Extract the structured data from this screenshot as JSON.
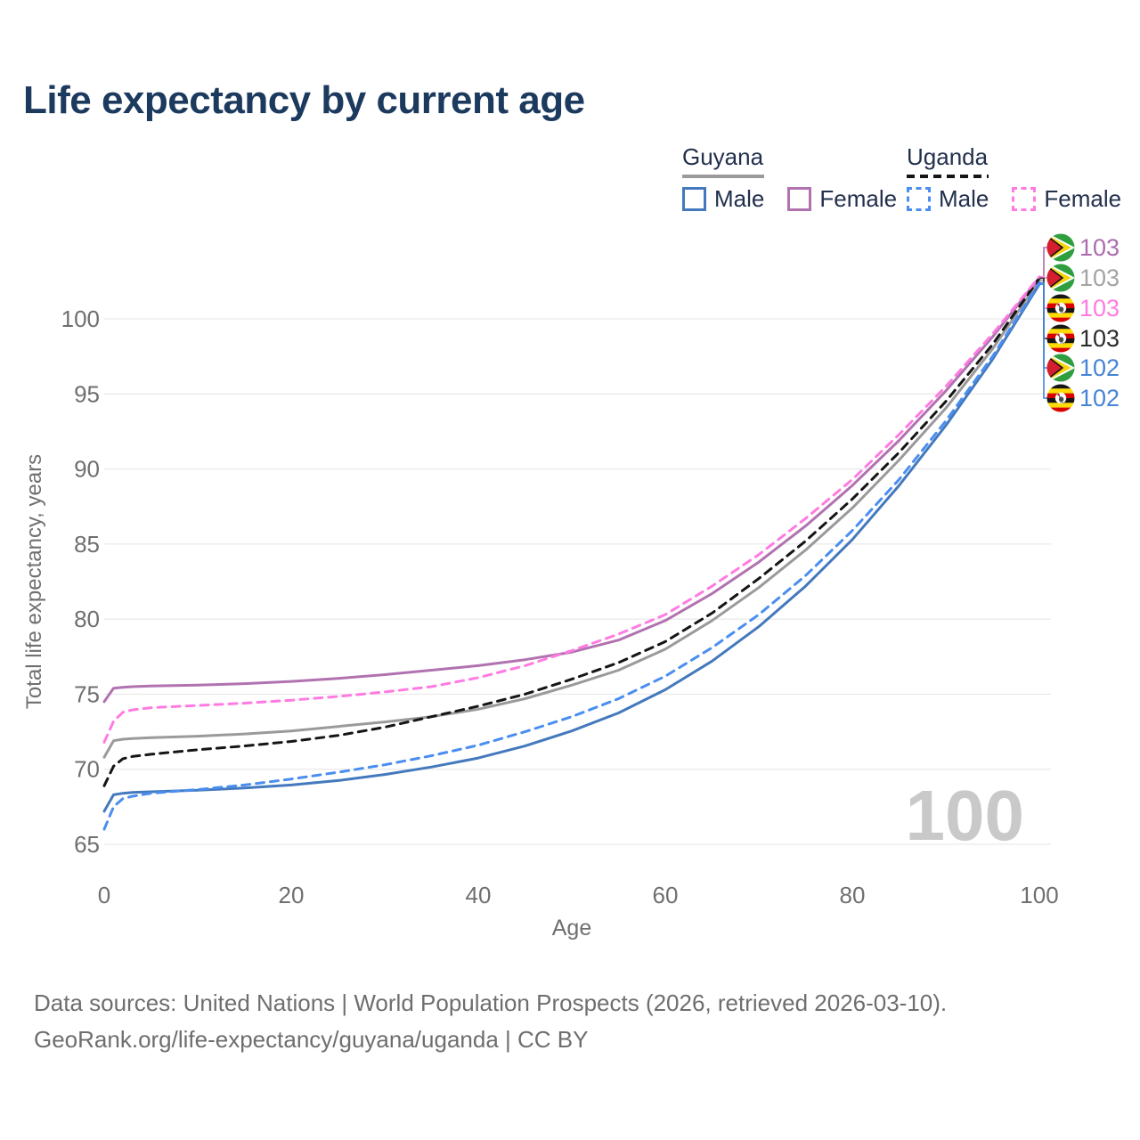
{
  "title": "Life expectancy by current age",
  "legend": {
    "groups": [
      {
        "country": "Guyana",
        "line_style": "solid",
        "underline_color": "#9a9a9a",
        "items": [
          {
            "label": "Male",
            "color": "#4479bd",
            "dashed": false
          },
          {
            "label": "Female",
            "color": "#b172b0",
            "dashed": false
          }
        ]
      },
      {
        "country": "Uganda",
        "line_style": "dashed",
        "underline_color": "#151515",
        "items": [
          {
            "label": "Male",
            "color": "#4a8ef0",
            "dashed": true
          },
          {
            "label": "Female",
            "color": "#ff7be1",
            "dashed": true
          }
        ]
      }
    ]
  },
  "chart_data": {
    "type": "line",
    "title": "Life expectancy by current age",
    "xlabel": "Age",
    "ylabel": "Total life expectancy, years",
    "xlim": [
      0,
      100
    ],
    "ylim": [
      65,
      100
    ],
    "x_ticks": [
      0,
      20,
      40,
      60,
      80,
      100
    ],
    "y_ticks": [
      65,
      70,
      75,
      80,
      85,
      90,
      95,
      100
    ],
    "grid": "horizontal",
    "gridline_color": "#e4e4e4",
    "axis_text_color": "#6f6f6f",
    "watermark": "100",
    "watermark_color": "#c9c9c9",
    "ages": [
      0,
      1,
      2,
      3,
      5,
      10,
      15,
      20,
      25,
      30,
      35,
      40,
      45,
      50,
      55,
      60,
      65,
      70,
      75,
      80,
      85,
      90,
      95,
      100
    ],
    "series": [
      {
        "id": "guyana_total",
        "name": "Guyana",
        "country": "Guyana",
        "sex": "Total",
        "color": "#9a9a9a",
        "dashed": false,
        "values": [
          70.8,
          71.9,
          72.0,
          72.05,
          72.1,
          72.2,
          72.35,
          72.55,
          72.85,
          73.15,
          73.5,
          74.0,
          74.7,
          75.6,
          76.6,
          78.0,
          79.9,
          82.1,
          84.6,
          87.4,
          90.6,
          94.05,
          98.0,
          102.55
        ]
      },
      {
        "id": "guyana_female",
        "name": "Guyana Female",
        "country": "Guyana",
        "sex": "Female",
        "color": "#b172b0",
        "dashed": false,
        "values": [
          74.5,
          75.4,
          75.45,
          75.5,
          75.55,
          75.6,
          75.7,
          75.85,
          76.05,
          76.3,
          76.6,
          76.9,
          77.3,
          77.8,
          78.6,
          79.9,
          81.7,
          83.8,
          86.2,
          88.9,
          91.9,
          95.2,
          98.8,
          102.75
        ]
      },
      {
        "id": "guyana_male",
        "name": "Guyana Male",
        "country": "Guyana",
        "sex": "Male",
        "color": "#4479bd",
        "dashed": false,
        "values": [
          67.2,
          68.3,
          68.4,
          68.45,
          68.5,
          68.6,
          68.75,
          68.95,
          69.25,
          69.65,
          70.15,
          70.75,
          71.55,
          72.55,
          73.75,
          75.3,
          77.2,
          79.5,
          82.2,
          85.3,
          88.9,
          92.9,
          97.3,
          102.3
        ]
      },
      {
        "id": "uganda_total",
        "name": "Uganda",
        "country": "Uganda",
        "sex": "Total",
        "color": "#151515",
        "dashed": true,
        "values": [
          68.9,
          70.2,
          70.7,
          70.85,
          71.0,
          71.3,
          71.55,
          71.85,
          72.25,
          72.8,
          73.5,
          74.2,
          75.0,
          76.0,
          77.1,
          78.5,
          80.4,
          82.7,
          85.2,
          88.0,
          91.1,
          94.5,
          98.3,
          102.7
        ]
      },
      {
        "id": "uganda_female",
        "name": "Uganda Female",
        "country": "Uganda",
        "sex": "Female",
        "color": "#ff7be1",
        "dashed": true,
        "values": [
          71.8,
          73.2,
          73.8,
          73.95,
          74.1,
          74.25,
          74.4,
          74.6,
          74.85,
          75.15,
          75.5,
          76.1,
          76.9,
          77.9,
          79.0,
          80.3,
          82.2,
          84.3,
          86.7,
          89.3,
          92.3,
          95.5,
          99.0,
          102.8
        ]
      },
      {
        "id": "uganda_male",
        "name": "Uganda Male",
        "country": "Uganda",
        "sex": "Male",
        "color": "#4a8ef0",
        "dashed": true,
        "values": [
          66.0,
          67.5,
          68.05,
          68.2,
          68.4,
          68.65,
          68.95,
          69.35,
          69.8,
          70.3,
          70.9,
          71.6,
          72.5,
          73.5,
          74.7,
          76.2,
          78.1,
          80.3,
          82.9,
          85.9,
          89.3,
          93.2,
          97.5,
          102.4
        ]
      }
    ],
    "end_rows": [
      {
        "series": "guyana_female",
        "flag": "guyana",
        "value": "103",
        "color": "#ab6dad"
      },
      {
        "series": "guyana_total",
        "flag": "guyana",
        "value": "103",
        "color": "#a3a3a3"
      },
      {
        "series": "uganda_female",
        "flag": "uganda",
        "value": "103",
        "color": "#ff7be1"
      },
      {
        "series": "uganda_total",
        "flag": "uganda",
        "value": "103",
        "color": "#2b2b2b"
      },
      {
        "series": "guyana_male",
        "flag": "guyana",
        "value": "102",
        "color": "#4583d6"
      },
      {
        "series": "uganda_male",
        "flag": "uganda",
        "value": "102",
        "color": "#4583d6"
      }
    ]
  },
  "footer": {
    "line1": "Data sources: United Nations | World Population Prospects (2026, retrieved 2026-03-10).",
    "line2": "GeoRank.org/life-expectancy/guyana/uganda | CC BY"
  }
}
